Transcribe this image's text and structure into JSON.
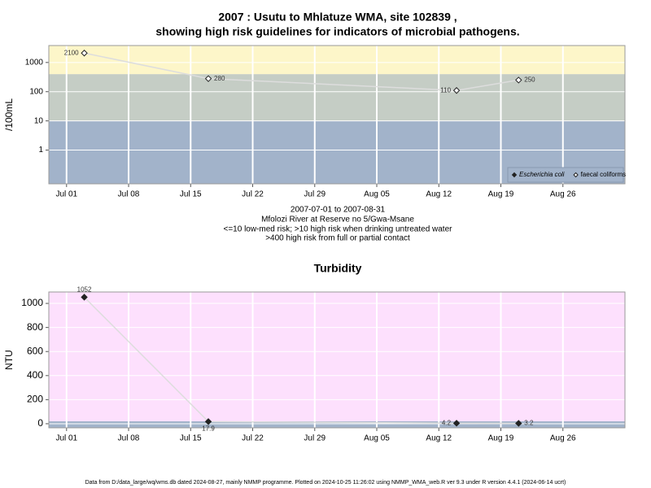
{
  "chart_data": [
    {
      "type": "line",
      "title": [
        "2007 : Usutu to Mhlatuze WMA, site 102839 ,",
        "showing high risk guidelines for indicators of microbial pathogens."
      ],
      "notes": [
        "2007-07-01 to 2007-08-31",
        "Mfolozi River at Reserve no 5/Gwa-Msane",
        "<=10 low-med risk; >10 high risk when drinking untreated water",
        ">400 high risk from full or partial contact"
      ],
      "y_label": "/100mL",
      "log_scale": true,
      "x": [
        "2007-07-03",
        "2007-07-17",
        "2007-08-14",
        "2007-08-21"
      ],
      "series": [
        {
          "name": "Escherichia coli",
          "marker": "filled",
          "color": "#222222",
          "line_color": "#dddddd",
          "values": [
            null,
            null,
            null,
            null
          ]
        },
        {
          "name": "faecal coliforms",
          "marker": "open",
          "color": "#222222",
          "line_color": "#dddddd",
          "values": [
            2100,
            280,
            110,
            250
          ]
        }
      ],
      "xlim": [
        "2007-06-29",
        "2007-09-02"
      ],
      "xticks": [
        {
          "value": "2007-07-01",
          "label": "Jul 01"
        },
        {
          "value": "2007-07-08",
          "label": "Jul 08"
        },
        {
          "value": "2007-07-15",
          "label": "Jul 15"
        },
        {
          "value": "2007-07-22",
          "label": "Jul 22"
        },
        {
          "value": "2007-07-29",
          "label": "Jul 29"
        },
        {
          "value": "2007-08-05",
          "label": "Aug 05"
        },
        {
          "value": "2007-08-12",
          "label": "Aug 12"
        },
        {
          "value": "2007-08-19",
          "label": "Aug 19"
        },
        {
          "value": "2007-08-26",
          "label": "Aug 26"
        }
      ],
      "ylim": [
        0.07,
        3800
      ],
      "yticks": [
        1,
        10,
        100,
        1000
      ],
      "thresholds": [
        10,
        400
      ],
      "band_colors": [
        "#a2b3ca",
        "#c5cdc5",
        "#fdf6c9"
      ],
      "grid": true,
      "legend": "bottom right"
    },
    {
      "type": "line",
      "title": [
        "Turbidity"
      ],
      "y_label": "NTU",
      "log_scale": false,
      "x": [
        "2007-07-03",
        "2007-07-17",
        "2007-08-14",
        "2007-08-21"
      ],
      "values": [
        1052,
        17.9,
        4.2,
        3.2
      ],
      "value_labels": [
        "1052",
        "17.9",
        "4.2",
        "3.2"
      ],
      "marker": "filled",
      "color": "#222222",
      "line_color": "#dddddd",
      "xlim": [
        "2007-06-29",
        "2007-09-02"
      ],
      "xticks": [
        {
          "value": "2007-07-01",
          "label": "Jul 01"
        },
        {
          "value": "2007-07-08",
          "label": "Jul 08"
        },
        {
          "value": "2007-07-15",
          "label": "Jul 15"
        },
        {
          "value": "2007-07-22",
          "label": "Jul 22"
        },
        {
          "value": "2007-07-29",
          "label": "Jul 29"
        },
        {
          "value": "2007-08-05",
          "label": "Aug 05"
        },
        {
          "value": "2007-08-12",
          "label": "Aug 12"
        },
        {
          "value": "2007-08-19",
          "label": "Aug 19"
        },
        {
          "value": "2007-08-26",
          "label": "Aug 26"
        }
      ],
      "ylim": [
        -34,
        1095
      ],
      "yticks": [
        0,
        200,
        400,
        600,
        800,
        1000
      ],
      "thresholds": [
        20
      ],
      "band_colors": [
        "#a2b3ca",
        "#fde0fd"
      ],
      "grid": true
    }
  ],
  "footer": "Data from D:/data_large/wq/wms.db dated 2024-08-27, mainly NMMP programme. Plotted on 2024-10-25 11:26:02 using NMMP_WMA_web.R ver 9.3 under R version 4.4.1 (2024-06-14 ucrt)"
}
